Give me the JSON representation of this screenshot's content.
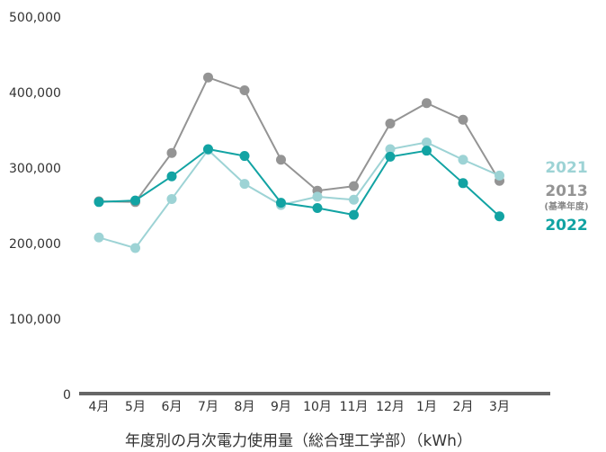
{
  "chart_data": {
    "type": "line",
    "title": "",
    "caption": "年度別の月次電力使用量（総合理工学部）（kWh）",
    "xlabel": "",
    "ylabel": "",
    "ylim": [
      0,
      500000
    ],
    "yticks": [
      "0",
      "100,000",
      "200,000",
      "300,000",
      "400,000",
      "500,000"
    ],
    "ytick_values": [
      0,
      100000,
      200000,
      300000,
      400000,
      500000
    ],
    "categories": [
      "4月",
      "5月",
      "6月",
      "7月",
      "8月",
      "9月",
      "10月",
      "11月",
      "12月",
      "1月",
      "2月",
      "3月"
    ],
    "grid": false,
    "legend_position": "right",
    "series": [
      {
        "name": "2013",
        "sublabel": "(基準年度)",
        "color": "#949494",
        "values": [
          256000,
          255000,
          320000,
          420000,
          403000,
          311000,
          270000,
          276000,
          359000,
          386000,
          364000,
          283000
        ]
      },
      {
        "name": "2021",
        "color": "#9dd3d5",
        "values": [
          208000,
          194000,
          259000,
          324000,
          279000,
          251000,
          262000,
          258000,
          325000,
          334000,
          311000,
          290000
        ]
      },
      {
        "name": "2022",
        "color": "#12a3a3",
        "values": [
          255000,
          257000,
          289000,
          325000,
          316000,
          254000,
          247000,
          238000,
          315000,
          323000,
          280000,
          236000
        ]
      }
    ]
  }
}
